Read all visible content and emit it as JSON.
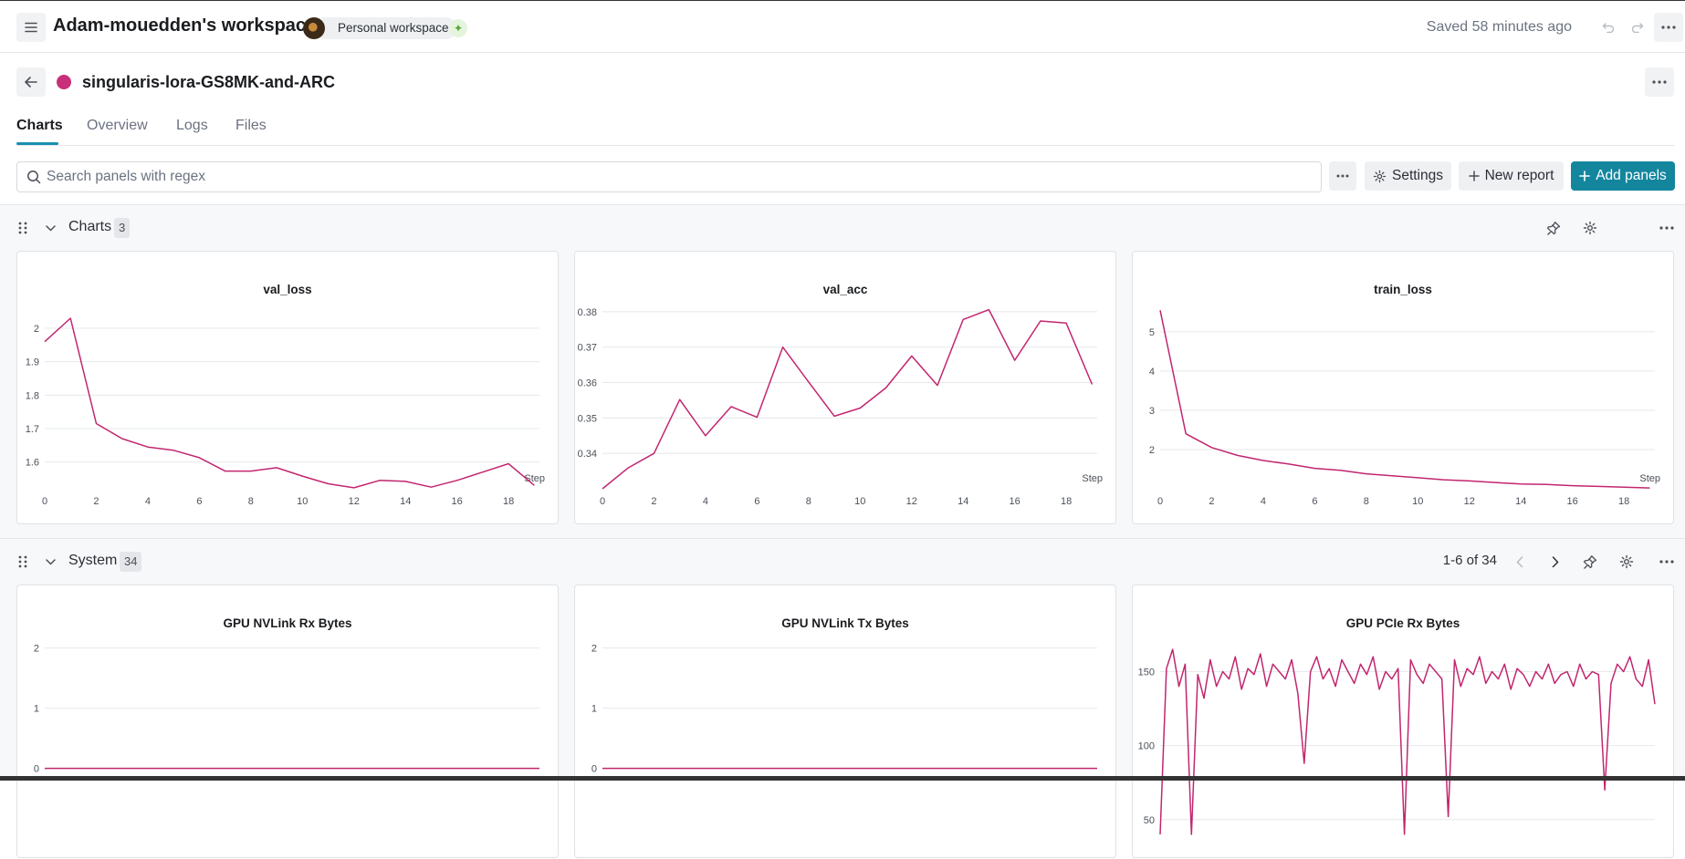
{
  "workspace": {
    "title": "Adam-mouedden's workspace",
    "badge": "Personal workspace",
    "saved_status": "Saved 58 minutes ago"
  },
  "run": {
    "name": "singularis-lora-GS8MK-and-ARC",
    "color": "#c8307a"
  },
  "tabs": [
    {
      "label": "Charts",
      "active": true
    },
    {
      "label": "Overview",
      "active": false
    },
    {
      "label": "Logs",
      "active": false
    },
    {
      "label": "Files",
      "active": false
    }
  ],
  "search": {
    "placeholder": "Search panels with regex",
    "value": ""
  },
  "toolbar": {
    "settings_label": "Settings",
    "new_report_label": "New report",
    "add_panels_label": "Add panels"
  },
  "sections": [
    {
      "title": "Charts",
      "count": "3",
      "pager": ""
    },
    {
      "title": "System",
      "count": "34",
      "pager": "1-6 of 34"
    }
  ],
  "colors": {
    "accent": "#13869e",
    "series": "#c2266f",
    "tab_underline": "#1a8fb0"
  },
  "chart_data": [
    {
      "type": "line",
      "title": "val_loss",
      "xlabel": "Step",
      "ylabel": "",
      "x": [
        0,
        1,
        2,
        3,
        4,
        5,
        6,
        7,
        8,
        9,
        10,
        11,
        12,
        13,
        14,
        15,
        16,
        17,
        18,
        19
      ],
      "series": [
        {
          "values": [
            1.96,
            2.03,
            1.715,
            1.67,
            1.645,
            1.635,
            1.613,
            1.573,
            1.573,
            1.583,
            1.558,
            1.535,
            1.523,
            1.545,
            1.542,
            1.525,
            1.545,
            1.57,
            1.595,
            1.53
          ]
        }
      ],
      "xlim": [
        0,
        19.2
      ],
      "ylim": [
        1.52,
        2.06
      ],
      "xticks": [
        "0",
        "2",
        "4",
        "6",
        "8",
        "10",
        "12",
        "14",
        "16",
        "18"
      ],
      "yticks": [
        "1.6",
        "1.7",
        "1.8",
        "1.9",
        "2"
      ]
    },
    {
      "type": "line",
      "title": "val_acc",
      "xlabel": "Step",
      "ylabel": "",
      "x": [
        0,
        1,
        2,
        3,
        4,
        5,
        6,
        7,
        8,
        9,
        10,
        11,
        12,
        13,
        14,
        15,
        16,
        17,
        18,
        19
      ],
      "series": [
        {
          "values": [
            0.33,
            0.3359,
            0.34,
            0.3552,
            0.345,
            0.3532,
            0.3502,
            0.37,
            0.3602,
            0.3505,
            0.3528,
            0.3585,
            0.3675,
            0.3592,
            0.3778,
            0.3806,
            0.3663,
            0.3774,
            0.3768,
            0.3595
          ]
        }
      ],
      "xlim": [
        0,
        19.2
      ],
      "ylim": [
        0.33,
        0.381
      ],
      "xticks": [
        "0",
        "2",
        "4",
        "6",
        "8",
        "10",
        "12",
        "14",
        "16",
        "18"
      ],
      "yticks": [
        "0.34",
        "0.35",
        "0.36",
        "0.37",
        "0.38"
      ]
    },
    {
      "type": "line",
      "title": "train_loss",
      "xlabel": "Step",
      "ylabel": "",
      "x": [
        0,
        1,
        2,
        3,
        4,
        5,
        6,
        7,
        8,
        9,
        10,
        11,
        12,
        13,
        14,
        15,
        16,
        17,
        18,
        19
      ],
      "series": [
        {
          "values": [
            5.55,
            2.4,
            2.05,
            1.85,
            1.72,
            1.63,
            1.52,
            1.47,
            1.38,
            1.33,
            1.28,
            1.23,
            1.2,
            1.16,
            1.12,
            1.11,
            1.08,
            1.06,
            1.04,
            1.02
          ]
        }
      ],
      "xlim": [
        0,
        19.2
      ],
      "ylim": [
        1.0,
        5.6
      ],
      "xticks": [
        "0",
        "2",
        "4",
        "6",
        "8",
        "10",
        "12",
        "14",
        "16",
        "18"
      ],
      "yticks": [
        "2",
        "3",
        "4",
        "5"
      ]
    },
    {
      "type": "line",
      "title": "GPU NVLink Rx Bytes",
      "xlabel": "",
      "ylabel": "",
      "x": [
        0,
        1
      ],
      "series": [
        {
          "values": [
            0,
            0
          ]
        }
      ],
      "xlim": [
        0,
        1
      ],
      "ylim": [
        -0.9,
        2.1
      ],
      "yticks": [
        "0",
        "1",
        "2"
      ],
      "xticks": []
    },
    {
      "type": "line",
      "title": "GPU NVLink Tx Bytes",
      "xlabel": "",
      "ylabel": "",
      "x": [
        0,
        1
      ],
      "series": [
        {
          "values": [
            0,
            0
          ]
        }
      ],
      "xlim": [
        0,
        1
      ],
      "ylim": [
        -0.9,
        2.1
      ],
      "yticks": [
        "0",
        "1",
        "2"
      ],
      "xticks": []
    },
    {
      "type": "line",
      "title": "GPU PCIe Rx Bytes",
      "xlabel": "",
      "ylabel": "",
      "x": [
        0,
        1,
        2,
        3,
        4,
        5,
        6,
        7,
        8,
        9,
        10,
        11,
        12,
        13,
        14,
        15,
        16,
        17,
        18,
        19,
        20,
        21,
        22,
        23,
        24,
        25,
        26,
        27,
        28,
        29,
        30,
        31,
        32,
        33,
        34,
        35,
        36,
        37,
        38,
        39,
        40,
        41,
        42,
        43,
        44,
        45,
        46,
        47,
        48,
        49,
        50,
        51,
        52,
        53,
        54,
        55,
        56,
        57,
        58,
        59,
        60,
        61,
        62,
        63,
        64,
        65,
        66,
        67,
        68,
        69,
        70,
        71,
        72,
        73,
        74,
        75,
        76,
        77,
        78,
        79
      ],
      "series": [
        {
          "values": [
            40,
            152,
            165,
            140,
            155,
            40,
            148,
            132,
            158,
            140,
            150,
            145,
            160,
            138,
            152,
            148,
            162,
            140,
            155,
            150,
            145,
            158,
            135,
            88,
            150,
            160,
            145,
            152,
            140,
            158,
            150,
            142,
            155,
            148,
            160,
            138,
            150,
            145,
            152,
            40,
            158,
            148,
            142,
            155,
            150,
            145,
            52,
            158,
            140,
            152,
            148,
            160,
            142,
            150,
            145,
            155,
            138,
            152,
            148,
            140,
            150,
            145,
            155,
            142,
            148,
            150,
            140,
            155,
            145,
            150,
            148,
            70,
            142,
            155,
            150,
            160,
            145,
            140,
            158,
            128
          ]
        }
      ],
      "xlim": [
        0,
        79
      ],
      "ylim": [
        48,
        170
      ],
      "yticks": [
        "50",
        "100",
        "150"
      ],
      "xticks": []
    }
  ]
}
